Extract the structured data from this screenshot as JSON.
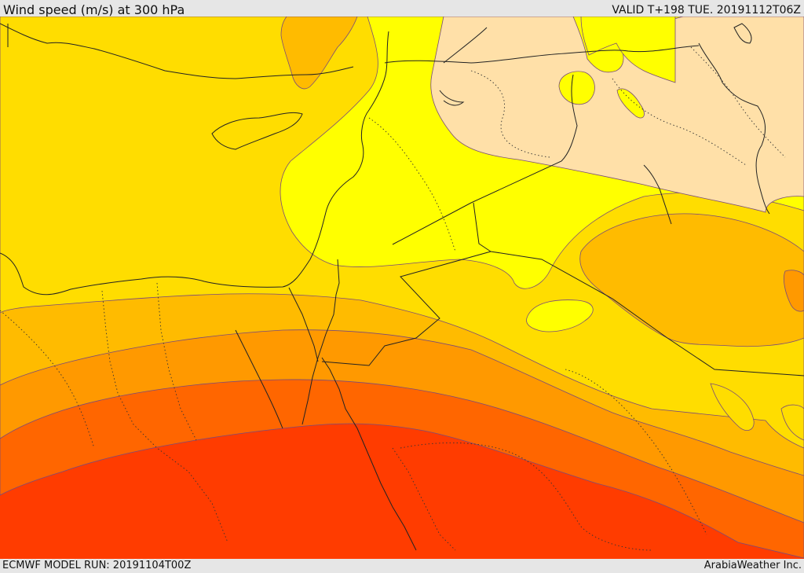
{
  "header": {
    "title": "Wind speed (m/s) at 300 hPa",
    "valid": "VALID T+198 TUE. 20191112T06Z"
  },
  "footer": {
    "model_run": "ECMWF MODEL RUN: 20191104T00Z",
    "credit": "ArabiaWeather Inc."
  },
  "map": {
    "field": "Wind speed",
    "level": "300 hPa",
    "shading_colors": [
      "#ffe0a8",
      "#ffff00",
      "#ffdd00",
      "#ffbb00",
      "#ff9900",
      "#ff6600",
      "#ff3c00"
    ]
  }
}
